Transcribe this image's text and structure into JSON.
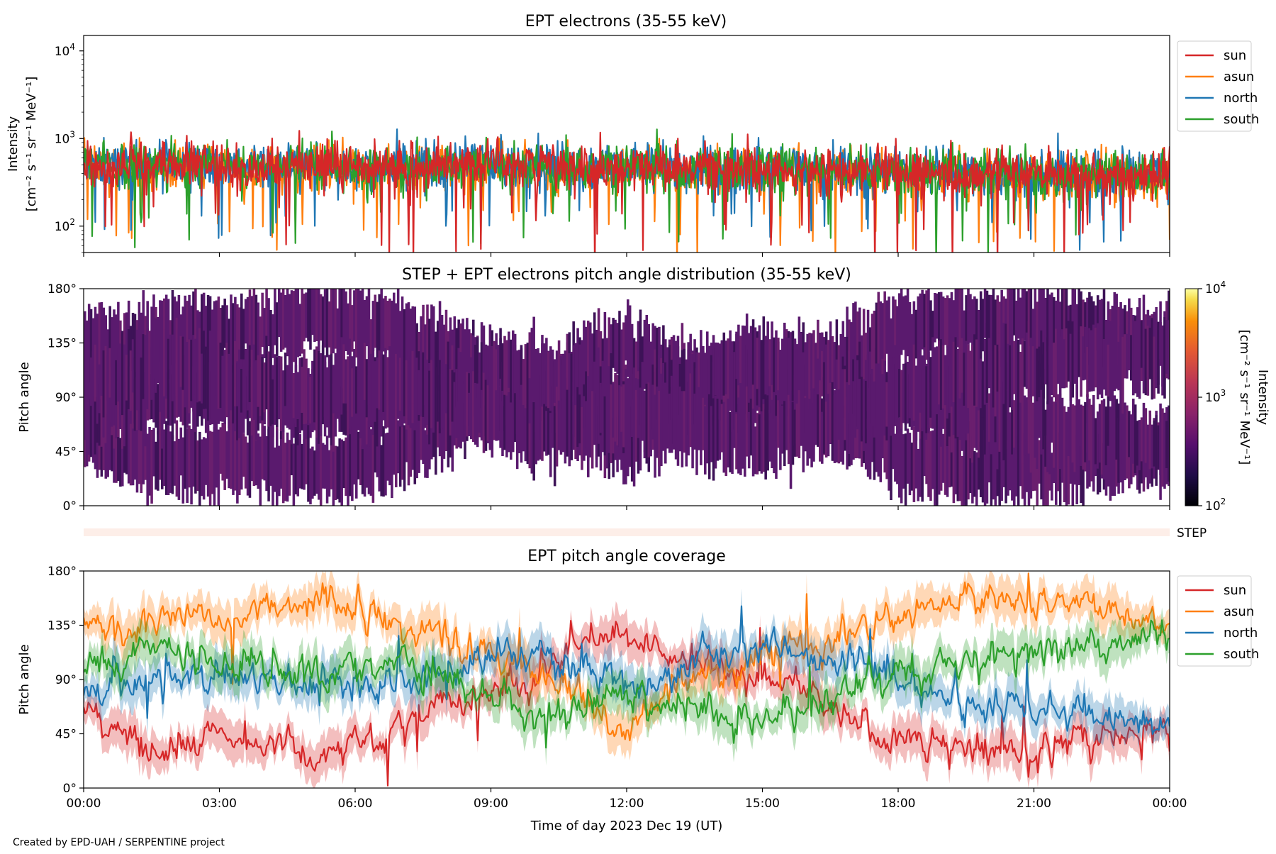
{
  "figure": {
    "credit": "Created by EPD-UAH / SERPENTINE project",
    "xlabel": "Time of day 2023 Dec 19 (UT)",
    "xticks": [
      "00:00",
      "03:00",
      "06:00",
      "09:00",
      "12:00",
      "15:00",
      "18:00",
      "21:00",
      "00:00"
    ]
  },
  "chart_data": [
    {
      "type": "line",
      "title": "EPT electrons (35-55 keV)",
      "ylabel_1": "Intensity",
      "ylabel_2": "[cm⁻² s⁻¹ sr⁻¹ MeV⁻¹]",
      "yscale": "log",
      "ylim": [
        50,
        15000
      ],
      "yticks": [
        {
          "value": 100,
          "base": "10",
          "exp": "2"
        },
        {
          "value": 1000,
          "base": "10",
          "exp": "3"
        },
        {
          "value": 10000,
          "base": "10",
          "exp": "4"
        }
      ],
      "xlim_hours": [
        0,
        24
      ],
      "legend": "top-right, outside plot",
      "series": [
        {
          "name": "sun",
          "color": "#d62728",
          "median": 500,
          "spread": 0.35,
          "values_hourly": [
            480,
            520,
            510,
            470,
            500,
            490,
            460,
            480,
            510,
            500,
            470,
            450,
            480,
            470,
            440,
            450,
            430,
            420,
            410,
            400,
            390,
            380,
            370,
            380
          ]
        },
        {
          "name": "asun",
          "color": "#ff7f0e",
          "median": 480,
          "spread": 0.35,
          "values_hourly": [
            470,
            500,
            490,
            450,
            480,
            470,
            440,
            460,
            490,
            480,
            450,
            430,
            460,
            450,
            420,
            430,
            410,
            400,
            390,
            380,
            380,
            370,
            360,
            370
          ]
        },
        {
          "name": "north",
          "color": "#1f77b4",
          "median": 500,
          "spread": 0.33,
          "values_hourly": [
            500,
            520,
            500,
            480,
            510,
            500,
            470,
            490,
            520,
            500,
            480,
            460,
            490,
            480,
            450,
            460,
            440,
            430,
            420,
            410,
            400,
            390,
            380,
            390
          ]
        },
        {
          "name": "south",
          "color": "#2ca02c",
          "median": 490,
          "spread": 0.33,
          "values_hourly": [
            490,
            510,
            500,
            470,
            500,
            490,
            460,
            480,
            510,
            490,
            470,
            450,
            480,
            470,
            440,
            450,
            430,
            420,
            410,
            400,
            390,
            380,
            370,
            380
          ]
        }
      ]
    },
    {
      "type": "heatmap",
      "title": "STEP + EPT electrons pitch angle distribution (35-55 keV)",
      "ylabel": "Pitch angle",
      "ylim_deg": [
        0,
        180
      ],
      "yticks": [
        "0°",
        "45°",
        "90°",
        "135°",
        "180°"
      ],
      "colorbar": {
        "label_1": "Intensity",
        "label_2": "[cm⁻² s⁻¹ sr⁻¹ MeV⁻¹]",
        "scale": "log",
        "range": [
          100,
          10000
        ],
        "ticks": [
          {
            "value": 100,
            "base": "10",
            "exp": "2"
          },
          {
            "value": 1000,
            "base": "10",
            "exp": "3"
          },
          {
            "value": 10000,
            "base": "10",
            "exp": "4"
          }
        ],
        "colormap": "inferno"
      },
      "fill_color": "#5a1a6e"
    },
    {
      "type": "bar",
      "label": "STEP",
      "color": "#fdeee8"
    },
    {
      "type": "line",
      "title": "EPT pitch angle coverage",
      "ylabel": "Pitch angle",
      "ylim_deg": [
        0,
        180
      ],
      "yticks": [
        "0°",
        "45°",
        "90°",
        "135°",
        "180°"
      ],
      "legend": "top-right, outside plot",
      "series": [
        {
          "name": "sun",
          "color": "#d62728",
          "hours": [
            0,
            1,
            2,
            3,
            4,
            5,
            6,
            7,
            8,
            9,
            10,
            11,
            12,
            13,
            14,
            15,
            16,
            17,
            18,
            19,
            20,
            21,
            22,
            23,
            24
          ],
          "pitch_deg": [
            60,
            45,
            35,
            40,
            35,
            30,
            35,
            45,
            70,
            80,
            95,
            120,
            130,
            110,
            100,
            90,
            80,
            60,
            40,
            35,
            30,
            30,
            35,
            40,
            45
          ]
        },
        {
          "name": "asun",
          "color": "#ff7f0e",
          "hours": [
            0,
            1,
            2,
            3,
            4,
            5,
            6,
            7,
            8,
            9,
            10,
            11,
            12,
            13,
            14,
            15,
            16,
            17,
            18,
            19,
            20,
            21,
            22,
            23,
            24
          ],
          "pitch_deg": [
            140,
            130,
            145,
            140,
            150,
            155,
            150,
            140,
            125,
            110,
            95,
            70,
            50,
            80,
            100,
            110,
            115,
            130,
            145,
            155,
            150,
            155,
            150,
            140,
            135
          ]
        },
        {
          "name": "north",
          "color": "#1f77b4",
          "hours": [
            0,
            1,
            2,
            3,
            4,
            5,
            6,
            7,
            8,
            9,
            10,
            11,
            12,
            13,
            14,
            15,
            16,
            17,
            18,
            19,
            20,
            21,
            22,
            23,
            24
          ],
          "pitch_deg": [
            70,
            85,
            90,
            95,
            90,
            85,
            80,
            90,
            100,
            110,
            115,
            100,
            85,
            95,
            115,
            120,
            110,
            100,
            90,
            80,
            70,
            65,
            60,
            55,
            50
          ]
        },
        {
          "name": "south",
          "color": "#2ca02c",
          "hours": [
            0,
            1,
            2,
            3,
            4,
            5,
            6,
            7,
            8,
            9,
            10,
            11,
            12,
            13,
            14,
            15,
            16,
            17,
            18,
            19,
            20,
            21,
            22,
            23,
            24
          ],
          "pitch_deg": [
            100,
            110,
            120,
            105,
            100,
            95,
            105,
            100,
            90,
            75,
            60,
            65,
            80,
            70,
            60,
            55,
            65,
            80,
            95,
            105,
            110,
            115,
            120,
            120,
            125
          ]
        }
      ]
    }
  ]
}
